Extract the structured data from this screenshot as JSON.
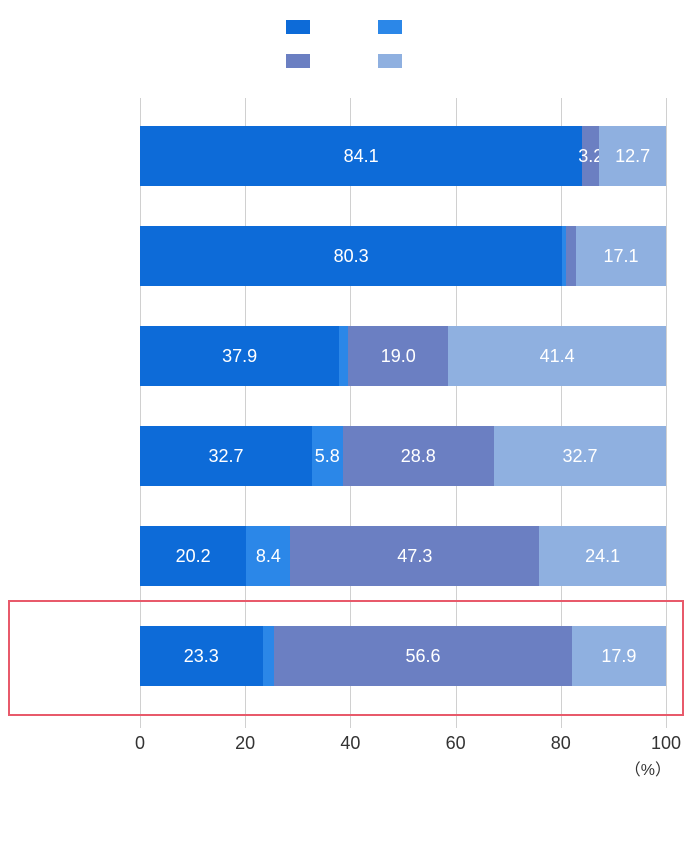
{
  "chart": {
    "type": "stacked-bar-horizontal",
    "background_color": "#ffffff",
    "grid_color": "#d0d0d0",
    "highlight_border_color": "#e85a6b",
    "text_color": "#333333",
    "segment_label_color": "#ffffff",
    "segment_label_fontsize": 18,
    "axis_label_fontsize": 18,
    "legend_swatch_width": 24,
    "legend_swatch_height": 14,
    "xlim": [
      0,
      100
    ],
    "xtick_step": 20,
    "xticks": [
      "0",
      "20",
      "40",
      "60",
      "80",
      "100"
    ],
    "x_unit": "（%）",
    "series_colors": {
      "s1": "#0d6bd8",
      "s2": "#2b87e8",
      "s3": "#6b7fc2",
      "s4": "#8fb0e0"
    },
    "legend": [
      {
        "key": "s1",
        "label": ""
      },
      {
        "key": "s2",
        "label": ""
      },
      {
        "key": "s3",
        "label": ""
      },
      {
        "key": "s4",
        "label": ""
      }
    ],
    "rows": [
      {
        "highlighted": false,
        "segments": [
          {
            "key": "s1",
            "value": 84.1,
            "label": "84.1",
            "show": "inside"
          },
          {
            "key": "s2",
            "value": 0.0,
            "label": "",
            "show": "none"
          },
          {
            "key": "s3",
            "value": 3.2,
            "label": "3.2",
            "show": "inside"
          },
          {
            "key": "s4",
            "value": 12.7,
            "label": "12.7",
            "show": "inside"
          }
        ]
      },
      {
        "highlighted": false,
        "segments": [
          {
            "key": "s1",
            "value": 80.3,
            "label": "80.3",
            "show": "inside"
          },
          {
            "key": "s2",
            "value": 0.7,
            "label": "",
            "show": "outside-above"
          },
          {
            "key": "s3",
            "value": 1.9,
            "label": "",
            "show": "none"
          },
          {
            "key": "s4",
            "value": 17.1,
            "label": "17.1",
            "show": "inside"
          }
        ]
      },
      {
        "highlighted": false,
        "segments": [
          {
            "key": "s1",
            "value": 37.9,
            "label": "37.9",
            "show": "inside"
          },
          {
            "key": "s2",
            "value": 1.7,
            "label": "",
            "show": "outside-above"
          },
          {
            "key": "s3",
            "value": 19.0,
            "label": "19.0",
            "show": "inside"
          },
          {
            "key": "s4",
            "value": 41.4,
            "label": "41.4",
            "show": "inside"
          }
        ]
      },
      {
        "highlighted": false,
        "segments": [
          {
            "key": "s1",
            "value": 32.7,
            "label": "32.7",
            "show": "inside"
          },
          {
            "key": "s2",
            "value": 5.8,
            "label": "5.8",
            "show": "inside"
          },
          {
            "key": "s3",
            "value": 28.8,
            "label": "28.8",
            "show": "inside"
          },
          {
            "key": "s4",
            "value": 32.7,
            "label": "32.7",
            "show": "inside"
          }
        ]
      },
      {
        "highlighted": false,
        "segments": [
          {
            "key": "s1",
            "value": 20.2,
            "label": "20.2",
            "show": "inside"
          },
          {
            "key": "s2",
            "value": 8.4,
            "label": "8.4",
            "show": "inside"
          },
          {
            "key": "s3",
            "value": 47.3,
            "label": "47.3",
            "show": "inside"
          },
          {
            "key": "s4",
            "value": 24.1,
            "label": "24.1",
            "show": "inside"
          }
        ]
      },
      {
        "highlighted": true,
        "segments": [
          {
            "key": "s1",
            "value": 23.3,
            "label": "23.3",
            "show": "inside"
          },
          {
            "key": "s2",
            "value": 2.2,
            "label": "",
            "show": "none"
          },
          {
            "key": "s3",
            "value": 56.6,
            "label": "56.6",
            "show": "inside"
          },
          {
            "key": "s4",
            "value": 17.9,
            "label": "17.9",
            "show": "inside"
          }
        ]
      }
    ]
  }
}
